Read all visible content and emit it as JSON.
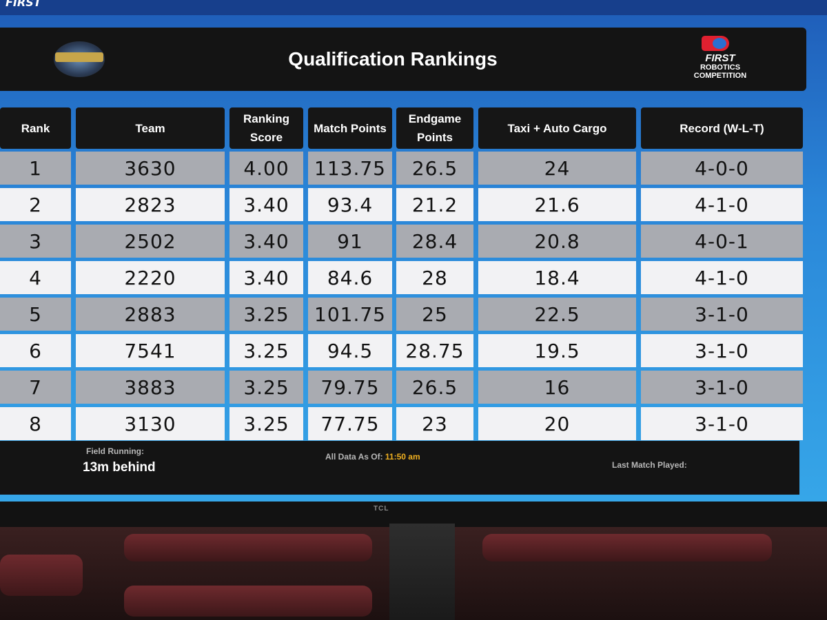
{
  "header": {
    "title": "Qualification Rankings",
    "org_logo": "FIRST",
    "org_logo_sub": "ROBOTICS COMPETITION"
  },
  "top_strip": {
    "text": "FIRST"
  },
  "tv_brand": "TCL",
  "table": {
    "columns": [
      "Rank",
      "Team",
      "Ranking Score",
      "Match Points",
      "Endgame Points",
      "Taxi + Auto Cargo",
      "Record (W-L-T)"
    ],
    "rows": [
      [
        "1",
        "3630",
        "4.00",
        "113.75",
        "26.5",
        "24",
        "4-0-0"
      ],
      [
        "2",
        "2823",
        "3.40",
        "93.4",
        "21.2",
        "21.6",
        "4-1-0"
      ],
      [
        "3",
        "2502",
        "3.40",
        "91",
        "28.4",
        "20.8",
        "4-0-1"
      ],
      [
        "4",
        "2220",
        "3.40",
        "84.6",
        "28",
        "18.4",
        "4-1-0"
      ],
      [
        "5",
        "2883",
        "3.25",
        "101.75",
        "25",
        "22.5",
        "3-1-0"
      ],
      [
        "6",
        "7541",
        "3.25",
        "94.5",
        "28.75",
        "19.5",
        "3-1-0"
      ],
      [
        "7",
        "3883",
        "3.25",
        "79.75",
        "26.5",
        "16",
        "3-1-0"
      ],
      [
        "8",
        "3130",
        "3.25",
        "77.75",
        "23",
        "20",
        "3-1-0"
      ]
    ]
  },
  "footer": {
    "field_running_label": "Field Running:",
    "field_running_value": "13m behind",
    "data_as_of_label": "All Data As Of:",
    "data_as_of_time": "11:50 am",
    "last_match_label": "Last Match Played:"
  },
  "colors": {
    "row_grey": "#a9abb1",
    "row_white": "#f2f2f4",
    "header_bg": "#161616",
    "screen_blue": "#2a86d8",
    "time_accent": "#f0b020"
  }
}
